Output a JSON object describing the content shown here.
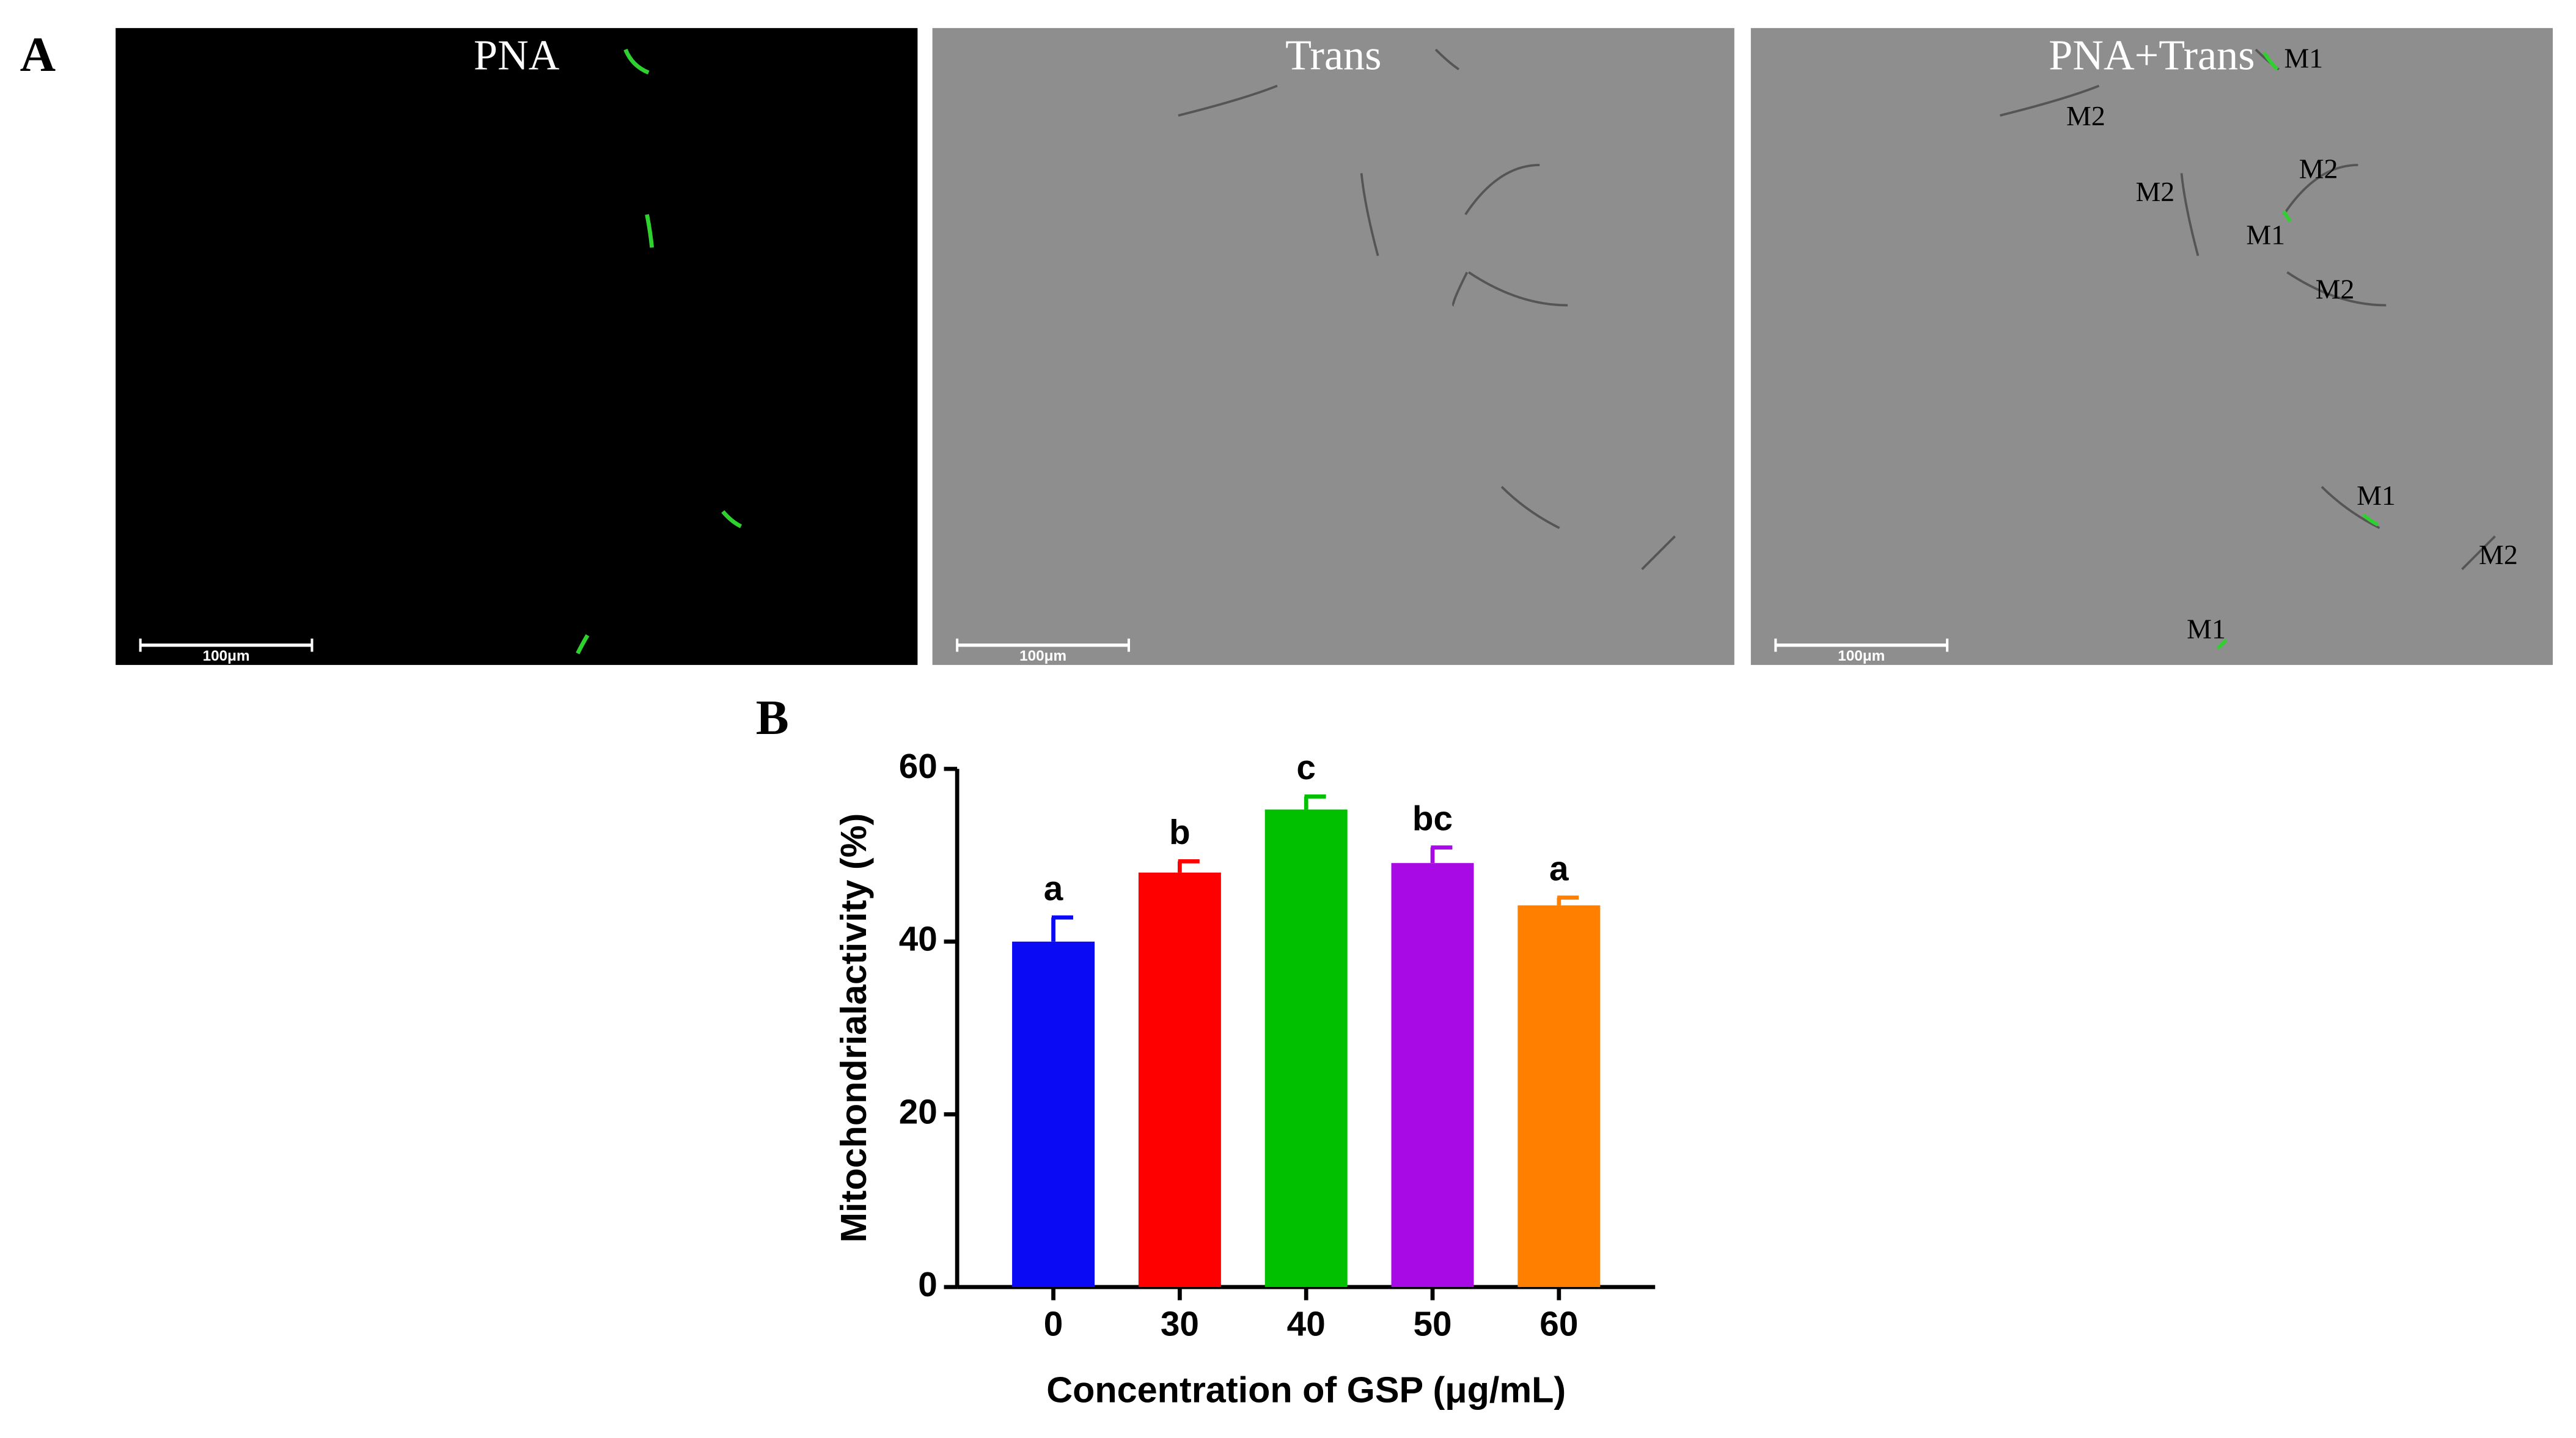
{
  "figure": {
    "panel_labels": [
      "A",
      "B"
    ],
    "images": [
      {
        "title": "PNA",
        "scale_bar": "100μm"
      },
      {
        "title": "Trans",
        "scale_bar": "100μm"
      },
      {
        "title": "PNA+Trans",
        "scale_bar": "100μm",
        "annotations": [
          "M1",
          "M2",
          "M2",
          "M2",
          "M1",
          "M2",
          "M1",
          "M2",
          "M1"
        ]
      }
    ]
  },
  "chart_data": {
    "type": "bar",
    "categories": [
      "0",
      "30",
      "40",
      "50",
      "60"
    ],
    "values": [
      40,
      48,
      55.3,
      49.1,
      44.2
    ],
    "errors": [
      2.8,
      1.3,
      1.5,
      1.8,
      0.9
    ],
    "significance_labels": [
      "a",
      "b",
      "c",
      "bc",
      "a"
    ],
    "colors": [
      "#0a0af5",
      "#ff0000",
      "#00c000",
      "#a80ae6",
      "#ff8000"
    ],
    "xlabel": "Concentration of GSP (μg/mL)",
    "ylabel": "Mitochondrialactivity (%)",
    "ylim": [
      0,
      60
    ],
    "yticks": [
      0,
      20,
      40,
      60
    ]
  }
}
